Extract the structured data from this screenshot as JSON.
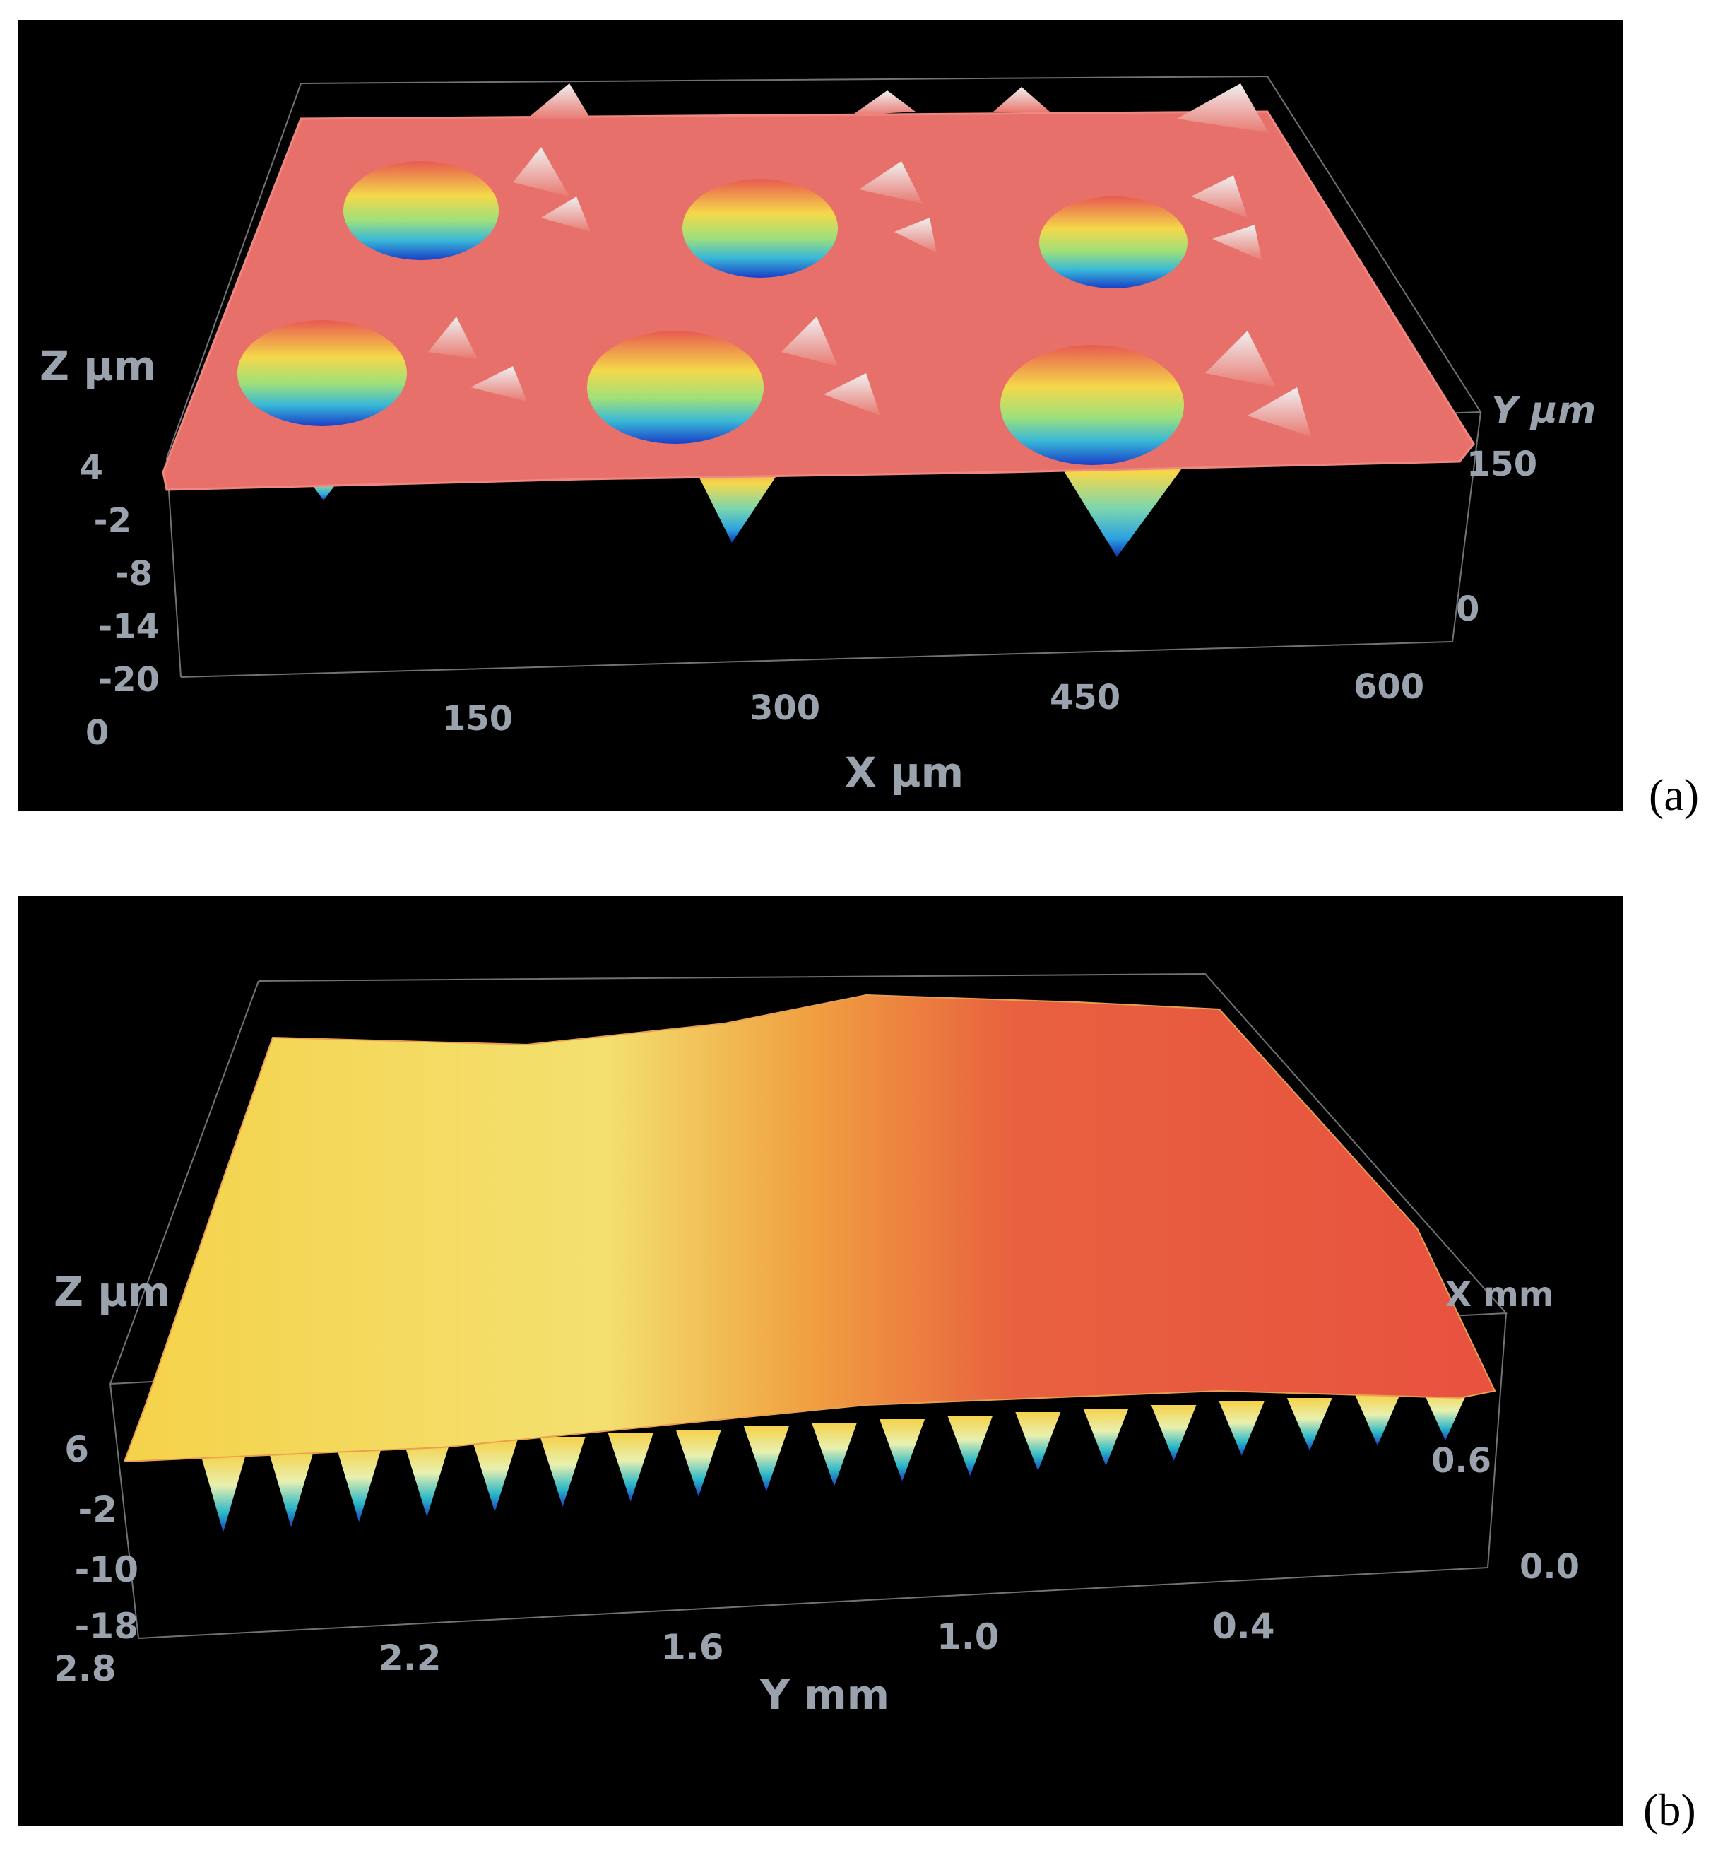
{
  "panel_a": {
    "label": "(a)",
    "z_axis": {
      "title": "Z µm",
      "ticks": [
        "4",
        "-2",
        "-8",
        "-14",
        "-20"
      ]
    },
    "x_axis": {
      "title": "X µm",
      "ticks": [
        "0",
        "150",
        "300",
        "450",
        "600"
      ]
    },
    "y_axis": {
      "title": "Y µm",
      "ticks": [
        "150",
        "0"
      ]
    }
  },
  "panel_b": {
    "label": "(b)",
    "z_axis": {
      "title": "Z µm",
      "ticks": [
        "6",
        "-2",
        "-10",
        "-18"
      ]
    },
    "y_axis": {
      "title": "Y mm",
      "ticks": [
        "2.8",
        "2.2",
        "1.6",
        "1.0",
        "0.4"
      ]
    },
    "x_axis": {
      "title": "X mm",
      "ticks": [
        "0.6",
        "0.0"
      ]
    }
  },
  "colors": {
    "background": "#000000",
    "axis_text": "#9aa3ad",
    "surface_a": "#e8706a",
    "surface_b_left": "#f5d24a",
    "surface_b_right": "#e8523f"
  }
}
